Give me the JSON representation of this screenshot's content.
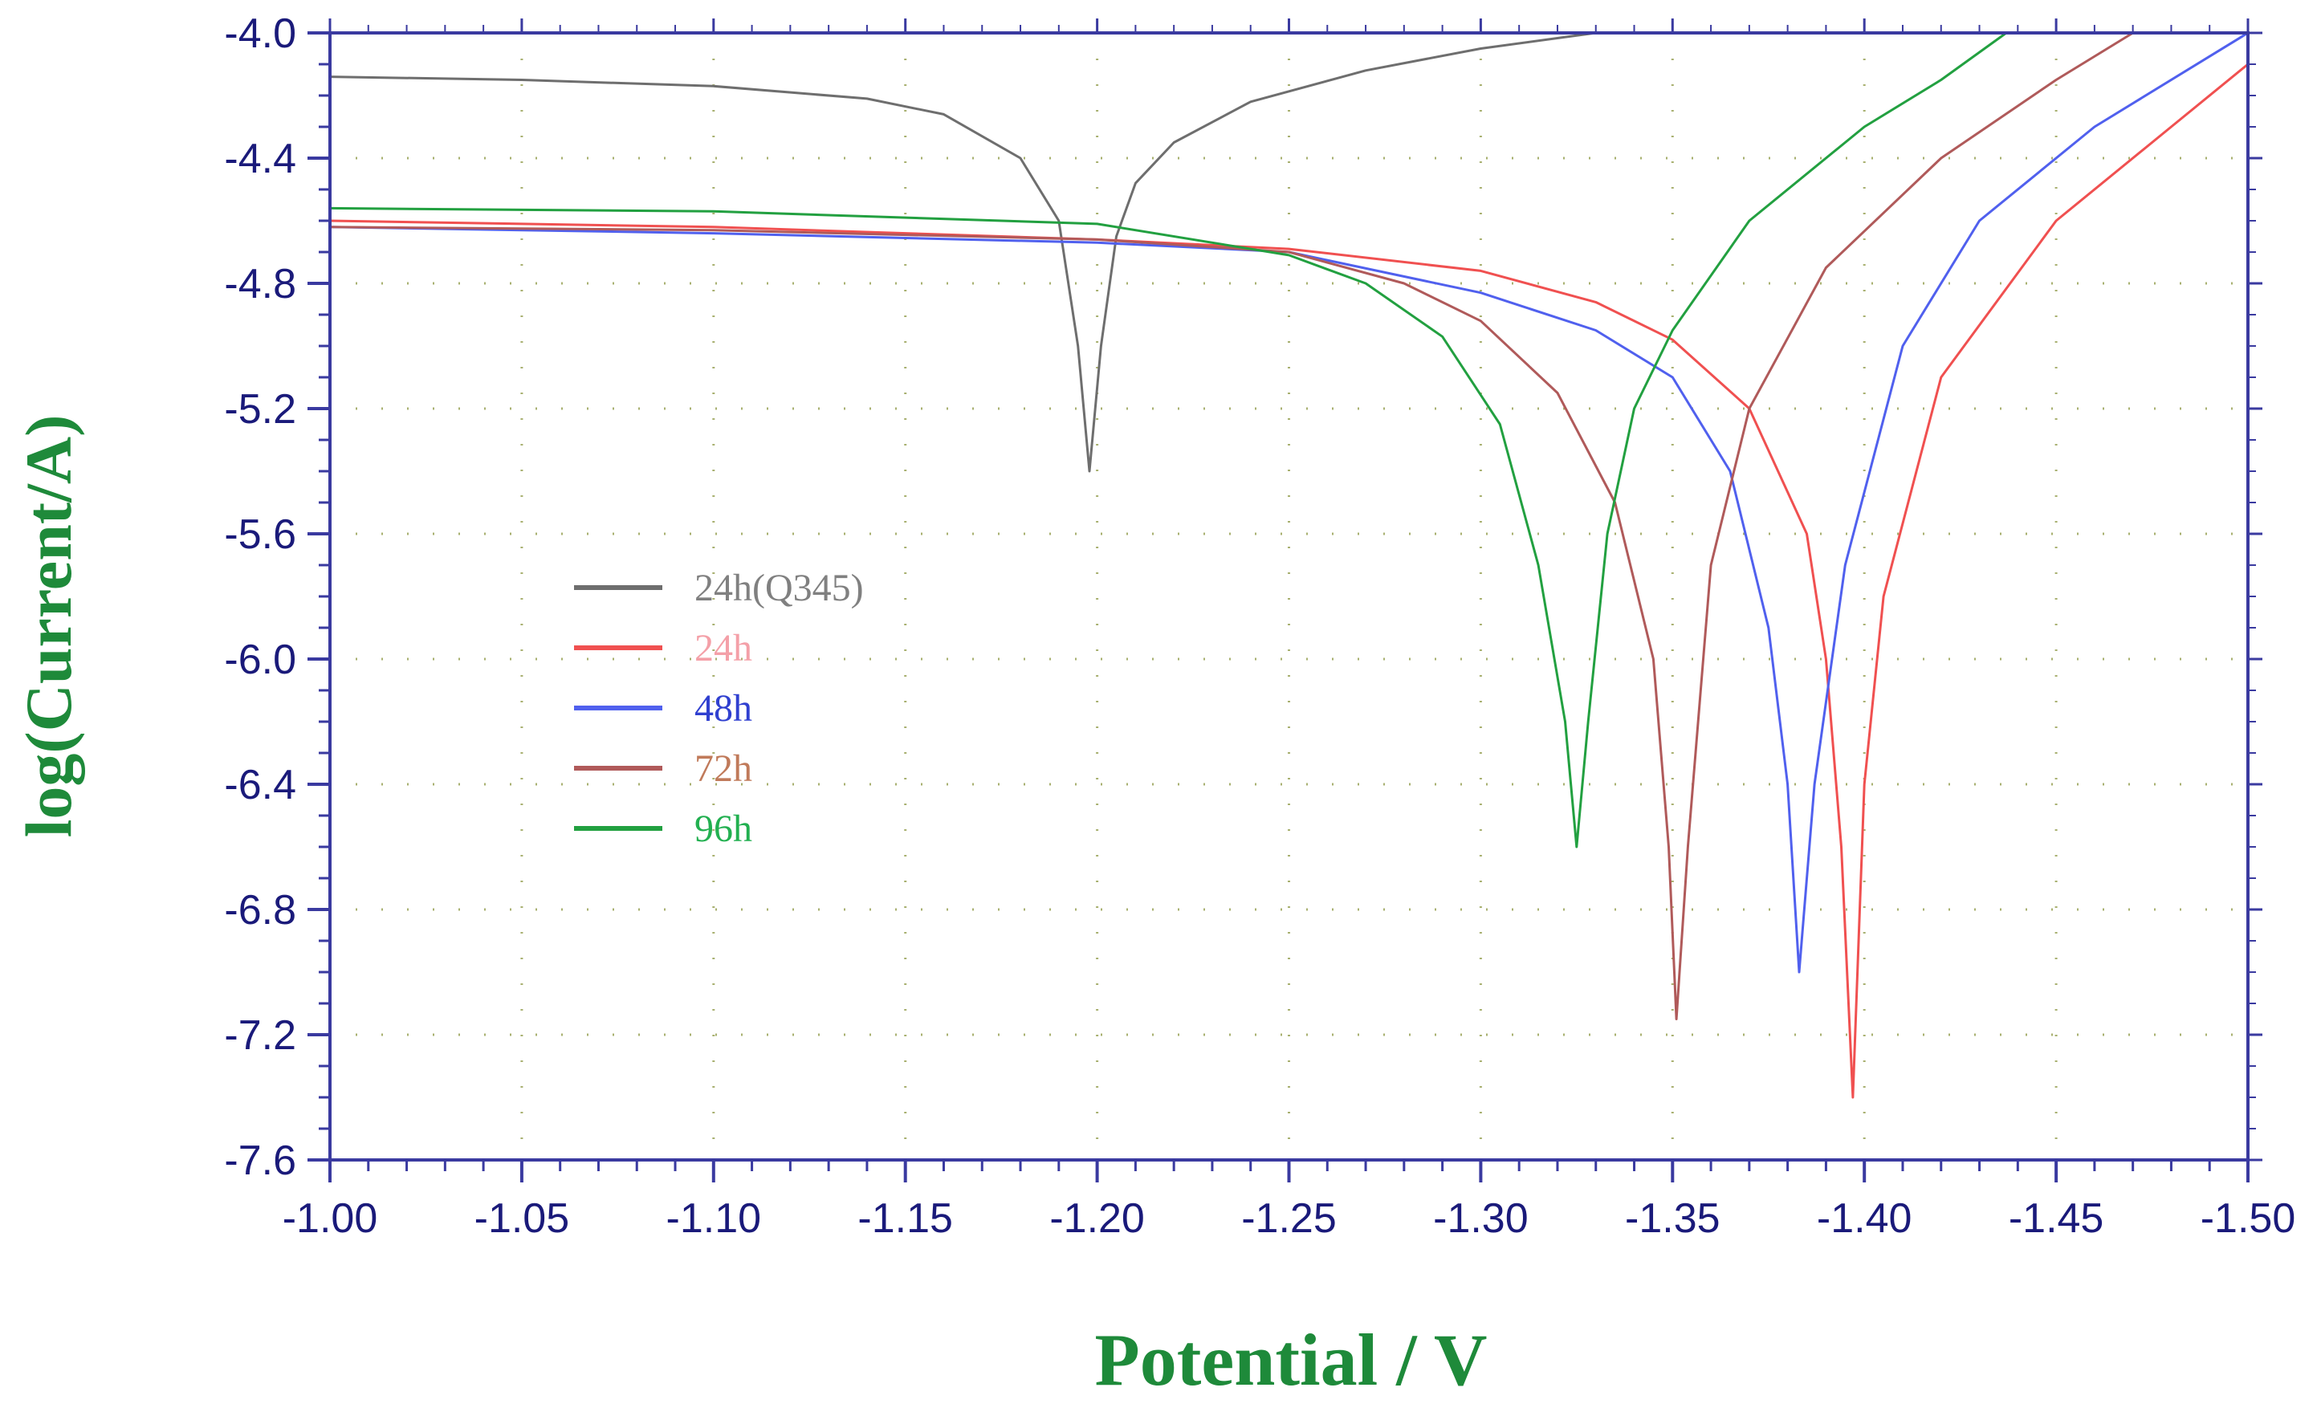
{
  "chart_data": {
    "type": "line",
    "xlabel": "Potential / V",
    "ylabel": "log(Current/A)",
    "xlim": [
      -1.0,
      -1.5
    ],
    "ylim": [
      -7.6,
      -4.0
    ],
    "x_ticks": [
      "-1.00",
      "-1.05",
      "-1.10",
      "-1.15",
      "-1.20",
      "-1.25",
      "-1.30",
      "-1.35",
      "-1.40",
      "-1.45",
      "-1.50"
    ],
    "y_ticks": [
      "-4.0",
      "-4.4",
      "-4.8",
      "-5.2",
      "-5.6",
      "-6.0",
      "-6.4",
      "-6.8",
      "-7.2",
      "-7.6"
    ],
    "grid": true,
    "legend_position": "center-left",
    "series": [
      {
        "name": "24h(Q345)",
        "color": "#6e6e6e",
        "text_color": "#808080",
        "points": [
          [
            -1.0,
            -4.14
          ],
          [
            -1.05,
            -4.15
          ],
          [
            -1.1,
            -4.17
          ],
          [
            -1.14,
            -4.21
          ],
          [
            -1.16,
            -4.26
          ],
          [
            -1.18,
            -4.4
          ],
          [
            -1.19,
            -4.6
          ],
          [
            -1.195,
            -5.0
          ],
          [
            -1.198,
            -5.4
          ],
          [
            -1.201,
            -5.0
          ],
          [
            -1.205,
            -4.65
          ],
          [
            -1.21,
            -4.48
          ],
          [
            -1.22,
            -4.35
          ],
          [
            -1.24,
            -4.22
          ],
          [
            -1.27,
            -4.12
          ],
          [
            -1.3,
            -4.05
          ],
          [
            -1.33,
            -4.0
          ]
        ]
      },
      {
        "name": "24h",
        "color": "#f05050",
        "text_color": "#f4a0a8",
        "points": [
          [
            -1.0,
            -4.6
          ],
          [
            -1.1,
            -4.62
          ],
          [
            -1.2,
            -4.66
          ],
          [
            -1.25,
            -4.69
          ],
          [
            -1.3,
            -4.76
          ],
          [
            -1.33,
            -4.86
          ],
          [
            -1.35,
            -4.98
          ],
          [
            -1.37,
            -5.2
          ],
          [
            -1.385,
            -5.6
          ],
          [
            -1.39,
            -6.0
          ],
          [
            -1.394,
            -6.6
          ],
          [
            -1.397,
            -7.4
          ],
          [
            -1.4,
            -6.4
          ],
          [
            -1.405,
            -5.8
          ],
          [
            -1.42,
            -5.1
          ],
          [
            -1.45,
            -4.6
          ],
          [
            -1.48,
            -4.3
          ],
          [
            -1.5,
            -4.1
          ]
        ]
      },
      {
        "name": "48h",
        "color": "#5060ee",
        "text_color": "#3040d0",
        "points": [
          [
            -1.0,
            -4.62
          ],
          [
            -1.1,
            -4.64
          ],
          [
            -1.2,
            -4.67
          ],
          [
            -1.25,
            -4.7
          ],
          [
            -1.3,
            -4.83
          ],
          [
            -1.33,
            -4.95
          ],
          [
            -1.35,
            -5.1
          ],
          [
            -1.365,
            -5.4
          ],
          [
            -1.375,
            -5.9
          ],
          [
            -1.38,
            -6.4
          ],
          [
            -1.383,
            -7.0
          ],
          [
            -1.387,
            -6.4
          ],
          [
            -1.395,
            -5.7
          ],
          [
            -1.41,
            -5.0
          ],
          [
            -1.43,
            -4.6
          ],
          [
            -1.46,
            -4.3
          ],
          [
            -1.5,
            -4.0
          ]
        ]
      },
      {
        "name": "72h",
        "color": "#b05a5a",
        "text_color": "#c07a5a",
        "points": [
          [
            -1.0,
            -4.62
          ],
          [
            -1.1,
            -4.63
          ],
          [
            -1.2,
            -4.66
          ],
          [
            -1.25,
            -4.7
          ],
          [
            -1.28,
            -4.8
          ],
          [
            -1.3,
            -4.92
          ],
          [
            -1.32,
            -5.15
          ],
          [
            -1.335,
            -5.5
          ],
          [
            -1.345,
            -6.0
          ],
          [
            -1.349,
            -6.6
          ],
          [
            -1.351,
            -7.15
          ],
          [
            -1.354,
            -6.6
          ],
          [
            -1.36,
            -5.7
          ],
          [
            -1.37,
            -5.2
          ],
          [
            -1.39,
            -4.75
          ],
          [
            -1.42,
            -4.4
          ],
          [
            -1.45,
            -4.15
          ],
          [
            -1.47,
            -4.0
          ]
        ]
      },
      {
        "name": "96h",
        "color": "#22a040",
        "text_color": "#22b050",
        "points": [
          [
            -1.0,
            -4.56
          ],
          [
            -1.1,
            -4.57
          ],
          [
            -1.2,
            -4.61
          ],
          [
            -1.25,
            -4.71
          ],
          [
            -1.27,
            -4.8
          ],
          [
            -1.29,
            -4.97
          ],
          [
            -1.305,
            -5.25
          ],
          [
            -1.315,
            -5.7
          ],
          [
            -1.322,
            -6.2
          ],
          [
            -1.325,
            -6.6
          ],
          [
            -1.328,
            -6.2
          ],
          [
            -1.333,
            -5.6
          ],
          [
            -1.34,
            -5.2
          ],
          [
            -1.35,
            -4.95
          ],
          [
            -1.37,
            -4.6
          ],
          [
            -1.4,
            -4.3
          ],
          [
            -1.42,
            -4.15
          ],
          [
            -1.437,
            -4.0
          ]
        ]
      }
    ]
  }
}
